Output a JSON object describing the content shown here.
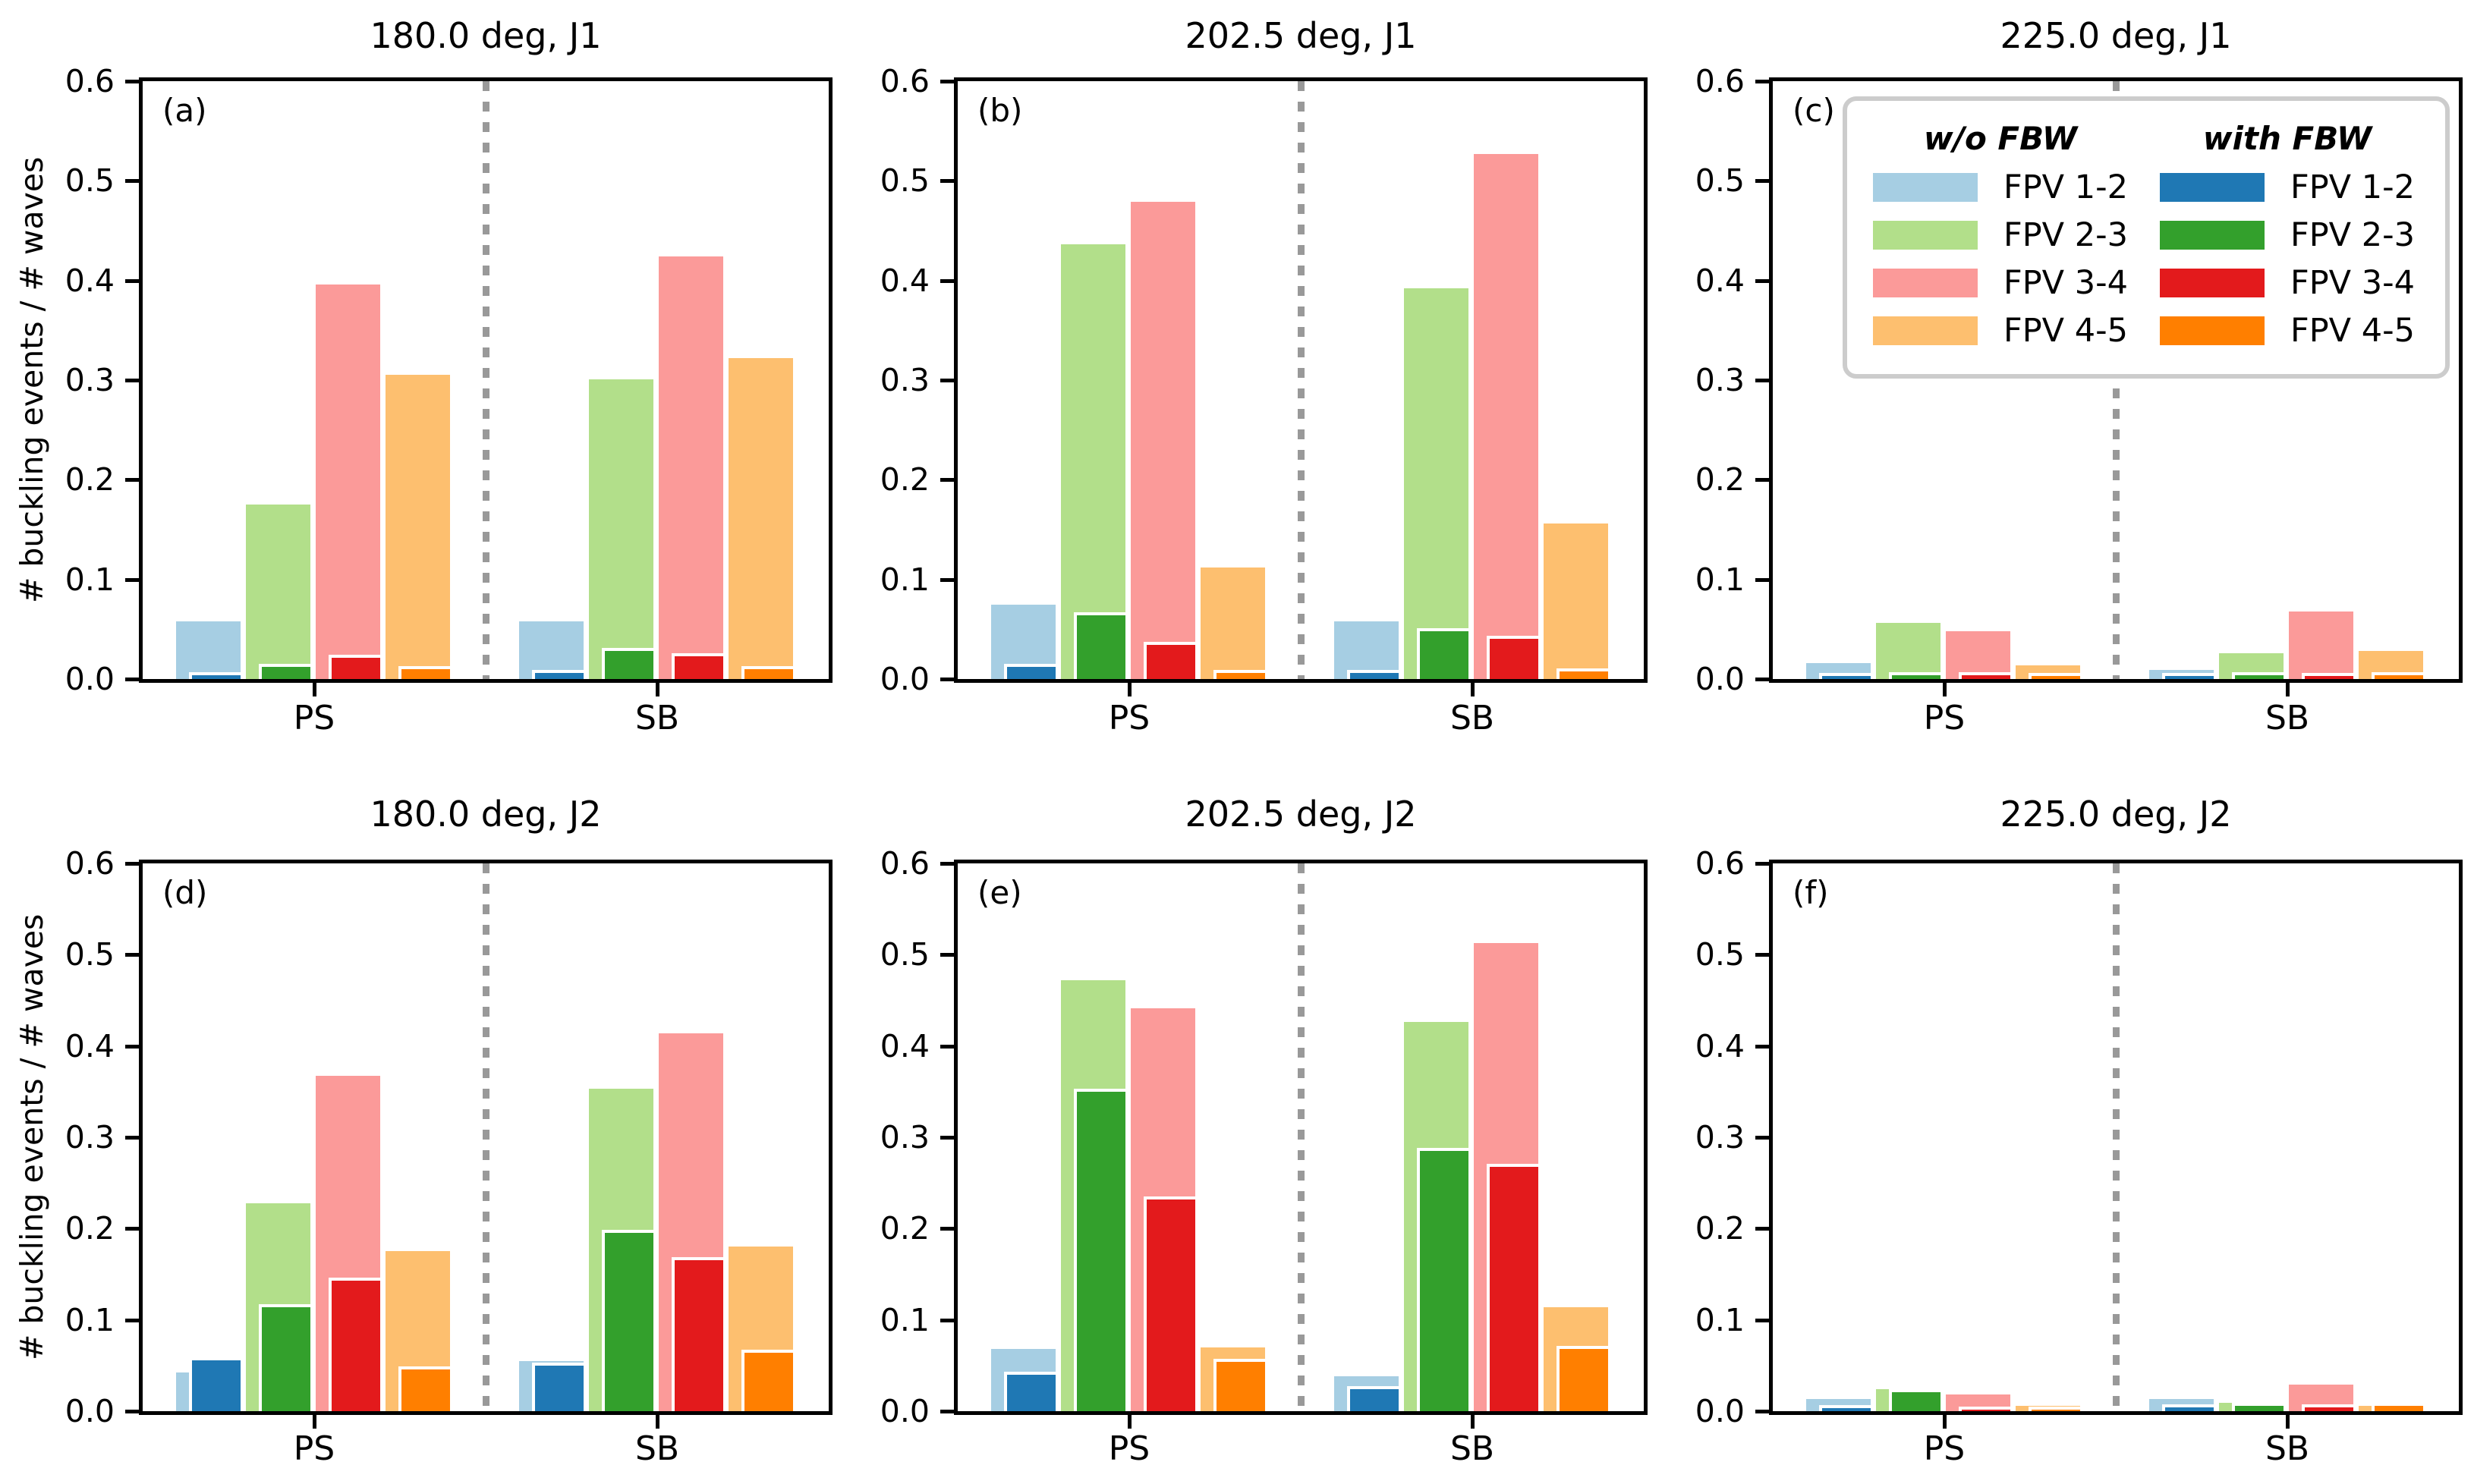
{
  "figure": {
    "background": "#ffffff"
  },
  "chart_data": {
    "type": "bar",
    "ylabel": "# buckling events / # waves",
    "ylim": [
      0,
      0.6
    ],
    "ytick_labels": [
      "0.0",
      "0.1",
      "0.2",
      "0.3",
      "0.4",
      "0.5",
      "0.6"
    ],
    "group_labels": [
      "PS",
      "SB"
    ],
    "series_labels": [
      "FPV 1-2",
      "FPV 2-3",
      "FPV 3-4",
      "FPV 4-5"
    ],
    "variant_labels": [
      "w/o FBW",
      "with FBW"
    ],
    "legend": {
      "position": "panel c, upper area",
      "columns": [
        {
          "title": "w/o FBW",
          "entries": [
            "FPV 1-2",
            "FPV 2-3",
            "FPV 3-4",
            "FPV 4-5"
          ],
          "palette": "light"
        },
        {
          "title": "with FBW",
          "entries": [
            "FPV 1-2",
            "FPV 2-3",
            "FPV 3-4",
            "FPV 4-5"
          ],
          "palette": "dark"
        }
      ]
    },
    "colors": {
      "light": [
        "#a6cee3",
        "#b2df8a",
        "#fb9a99",
        "#fdbf6f"
      ],
      "dark": [
        "#1f78b4",
        "#33a02c",
        "#e31a1c",
        "#ff7f00"
      ],
      "separator": "#999999",
      "axis": "#000000",
      "legend_border": "#cccccc"
    },
    "grid": false,
    "layout": {
      "rows": 2,
      "cols": 3
    },
    "panels": [
      {
        "letter": "(a)",
        "title": "180.0 deg, J1",
        "has_legend": false,
        "groups": {
          "PS": {
            "wo_fbw": [
              0.058,
              0.175,
              0.396,
              0.305
            ],
            "with_fbw": [
              0.004,
              0.012,
              0.021,
              0.01
            ]
          },
          "SB": {
            "wo_fbw": [
              0.058,
              0.301,
              0.424,
              0.322
            ],
            "with_fbw": [
              0.006,
              0.028,
              0.023,
              0.01
            ]
          }
        }
      },
      {
        "letter": "(b)",
        "title": "202.5 deg, J1",
        "has_legend": false,
        "groups": {
          "PS": {
            "wo_fbw": [
              0.075,
              0.436,
              0.479,
              0.112
            ],
            "with_fbw": [
              0.012,
              0.064,
              0.034,
              0.006
            ]
          },
          "SB": {
            "wo_fbw": [
              0.058,
              0.392,
              0.527,
              0.156
            ],
            "with_fbw": [
              0.006,
              0.048,
              0.04,
              0.008
            ]
          }
        }
      },
      {
        "letter": "(c)",
        "title": "225.0 deg, J1",
        "has_legend": true,
        "groups": {
          "PS": {
            "wo_fbw": [
              0.016,
              0.056,
              0.048,
              0.014
            ],
            "with_fbw": [
              0.003,
              0.004,
              0.004,
              0.003
            ]
          },
          "SB": {
            "wo_fbw": [
              0.009,
              0.026,
              0.068,
              0.028
            ],
            "with_fbw": [
              0.003,
              0.004,
              0.003,
              0.004
            ]
          }
        }
      },
      {
        "letter": "(d)",
        "title": "180.0 deg, J2",
        "has_legend": false,
        "groups": {
          "PS": {
            "wo_fbw": [
              0.042,
              0.228,
              0.367,
              0.175
            ],
            "with_fbw": [
              0.056,
              0.114,
              0.143,
              0.046
            ]
          },
          "SB": {
            "wo_fbw": [
              0.055,
              0.353,
              0.414,
              0.18
            ],
            "with_fbw": [
              0.05,
              0.195,
              0.165,
              0.064
            ]
          }
        }
      },
      {
        "letter": "(e)",
        "title": "202.5 deg, J2",
        "has_legend": false,
        "groups": {
          "PS": {
            "wo_fbw": [
              0.068,
              0.472,
              0.441,
              0.07
            ],
            "with_fbw": [
              0.04,
              0.35,
              0.232,
              0.054
            ]
          },
          "SB": {
            "wo_fbw": [
              0.038,
              0.426,
              0.513,
              0.114
            ],
            "with_fbw": [
              0.024,
              0.285,
              0.268,
              0.068
            ]
          }
        }
      },
      {
        "letter": "(f)",
        "title": "225.0 deg, J2",
        "has_legend": false,
        "groups": {
          "PS": {
            "wo_fbw": [
              0.013,
              0.024,
              0.018,
              0.006
            ],
            "with_fbw": [
              0.003,
              0.021,
              0.002,
              0.002
            ]
          },
          "SB": {
            "wo_fbw": [
              0.013,
              0.009,
              0.029,
              0.006
            ],
            "with_fbw": [
              0.004,
              0.006,
              0.004,
              0.006
            ]
          }
        }
      }
    ]
  }
}
